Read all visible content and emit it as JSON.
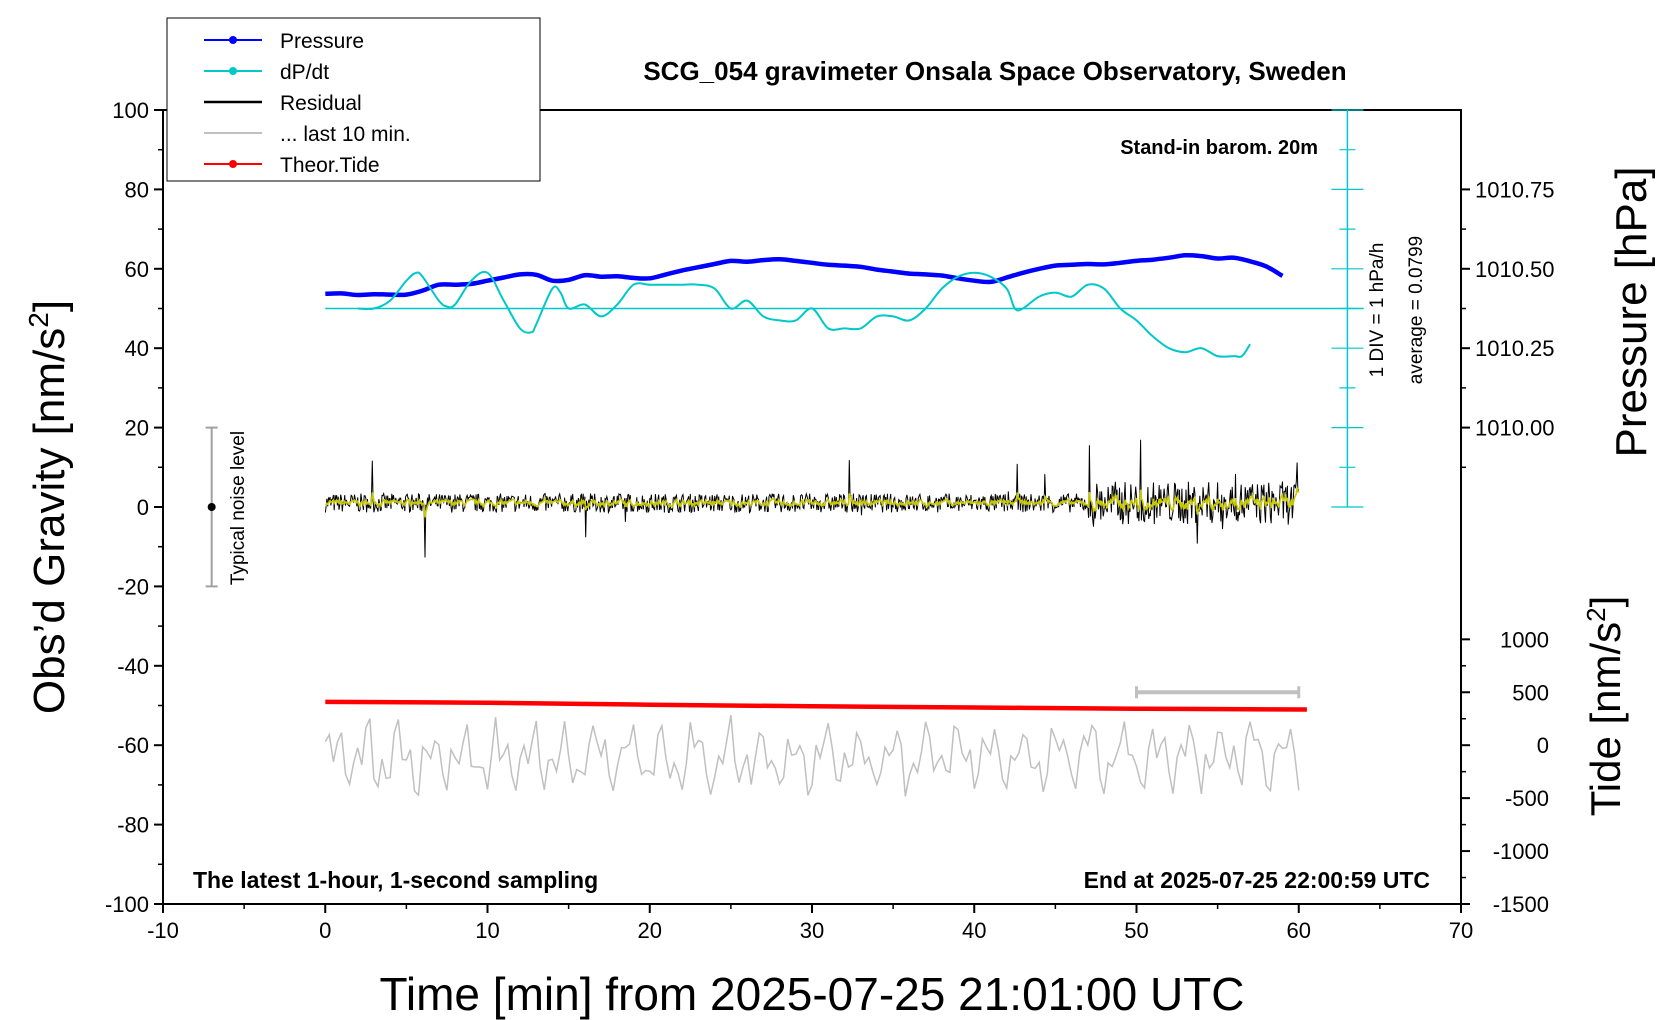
{
  "chart_data": {
    "type": "line",
    "title": "SCG_054 gravimeter Onsala Space Observatory, Sweden",
    "xlabel": "Time [min] from 2025-07-25 21:01:00 UTC",
    "ylabel_left": "Obs’d Gravity [nm/s",
    "ylabel_left_sup": "2",
    "ylabel_left_tail": "]",
    "ylabel_right_top": "Pressure [hPa]",
    "ylabel_right_bottom": "Tide [nm/s",
    "ylabel_right_bottom_sup": "2",
    "ylabel_right_bottom_tail": "]",
    "xlim": [
      -10,
      70
    ],
    "ylim": [
      -100,
      100
    ],
    "x_ticks": [
      "-10",
      "0",
      "10",
      "20",
      "30",
      "40",
      "50",
      "60",
      "70"
    ],
    "y_ticks": [
      "100",
      "80",
      "60",
      "40",
      "20",
      "0",
      "-20",
      "-40",
      "-60",
      "-80",
      "-100"
    ],
    "pressure_ticks": [
      {
        "label": "1010.75",
        "value": 1010.75
      },
      {
        "label": "1010.50",
        "value": 1010.5
      },
      {
        "label": "1010.25",
        "value": 1010.25
      },
      {
        "label": "1010.00",
        "value": 1010.0
      }
    ],
    "pressure_axis": {
      "value_at_gravity_0": 1009.75,
      "hpa_per_20_nms2": 0.25
    },
    "tide_ticks": [
      {
        "label": "1000",
        "value": 1000
      },
      {
        "label": "500",
        "value": 500
      },
      {
        "label": "0",
        "value": 0
      },
      {
        "label": "-500",
        "value": -500
      },
      {
        "label": "-1000",
        "value": -1000
      },
      {
        "label": "-1500",
        "value": -1500
      }
    ],
    "tide_axis": {
      "value_at_gravity_minus_100": -1500,
      "value_at_gravity_0": 2250
    },
    "legend": [
      {
        "label": "Pressure",
        "color": "#0000ff",
        "marker": true
      },
      {
        "label": "dP/dt",
        "color": "#00c8c8",
        "marker": true
      },
      {
        "label": "Residual",
        "color": "#000000",
        "marker": false
      },
      {
        "label": "... last 10 min.",
        "color": "#c0c0c0",
        "marker": false
      },
      {
        "label": "Theor.Tide",
        "color": "#ff0000",
        "marker": true
      }
    ],
    "legend_position": "top-left",
    "annotations": {
      "barom": "Stand-in barom. 20m",
      "div": "1 DIV = 1 hPa/h",
      "average": "average = 0.0799",
      "noise": "Typical noise level",
      "latest": "The latest 1-hour, 1-second sampling",
      "end": "End at 2025-07-25 22:00:59 UTC"
    },
    "dpdt_baseline_y": 50,
    "dpdt_scale_bar": {
      "x": 63,
      "y_from": 0,
      "y_to": 100
    },
    "noise_bar": {
      "x": -7,
      "y_from": -20,
      "y_to": 20,
      "center": 0
    },
    "last10_bar": {
      "x_from": 50,
      "x_to": 60,
      "tide": 500
    },
    "series": [
      {
        "name": "Pressure",
        "color": "#0000ff",
        "x": [
          0,
          1,
          2,
          3,
          4,
          5,
          6,
          7,
          8,
          9,
          10,
          11,
          12,
          13,
          14,
          15,
          16,
          17,
          18,
          19,
          20,
          21,
          22,
          23,
          24,
          25,
          26,
          27,
          28,
          29,
          30,
          31,
          32,
          33,
          34,
          35,
          36,
          37,
          38,
          39,
          40,
          41,
          42,
          43,
          44,
          45,
          46,
          47,
          48,
          49,
          50,
          51,
          52,
          53,
          54,
          55,
          56,
          57,
          58,
          59
        ],
        "y": [
          53.7,
          53.8,
          53.4,
          53.6,
          53.5,
          53.5,
          54.5,
          56,
          56,
          56.2,
          57,
          57.8,
          58.6,
          58.5,
          57,
          57.2,
          58.4,
          58,
          58.1,
          57.7,
          57.6,
          58.6,
          59.6,
          60.4,
          61.2,
          62,
          61.8,
          62.2,
          62.4,
          62,
          61.5,
          61,
          60.8,
          60.5,
          59.8,
          59.3,
          58.8,
          58.6,
          58.3,
          57.6,
          57,
          56.7,
          57.8,
          59,
          60,
          60.8,
          61,
          61.2,
          61.1,
          61.5,
          62,
          62.3,
          62.8,
          63.4,
          63.2,
          62.6,
          62.8,
          61.9,
          60.6,
          58.2
        ]
      },
      {
        "name": "dP/dt",
        "color": "#00c8c8",
        "x": [
          2,
          3,
          4,
          5,
          5.6,
          6,
          7,
          7.5,
          8,
          9,
          10,
          11,
          12,
          12.7,
          13,
          14,
          14.5,
          15,
          16,
          17,
          18,
          19,
          20,
          21,
          22,
          23,
          24,
          25,
          26,
          27,
          28,
          29,
          30,
          31,
          32,
          33,
          34,
          35,
          36,
          37,
          38,
          39,
          40,
          41,
          42,
          42.5,
          43,
          44,
          45,
          46,
          47,
          48,
          49,
          50,
          51,
          52,
          53,
          54,
          55,
          56,
          56.5,
          57
        ],
        "y": [
          50,
          50,
          52,
          57,
          59,
          58,
          52,
          50.5,
          51,
          57,
          59,
          52,
          45,
          44,
          46,
          55,
          54,
          50,
          51,
          48,
          51,
          56,
          56,
          56,
          56,
          56,
          55,
          50,
          52,
          48,
          47,
          47,
          50,
          45,
          45,
          45,
          48,
          48,
          47,
          50,
          55,
          58,
          59,
          58,
          55,
          50,
          50,
          53,
          54,
          53,
          56,
          55,
          50,
          47,
          43,
          40,
          39,
          40,
          38,
          38,
          38,
          41
        ]
      },
      {
        "name": "Theor.Tide",
        "color": "#ff0000",
        "x": [
          0,
          10,
          20,
          30,
          40,
          50,
          60.5
        ],
        "y": [
          -49.1,
          -49.3,
          -49.8,
          -50.2,
          -50.5,
          -50.8,
          -51.0
        ]
      }
    ]
  }
}
